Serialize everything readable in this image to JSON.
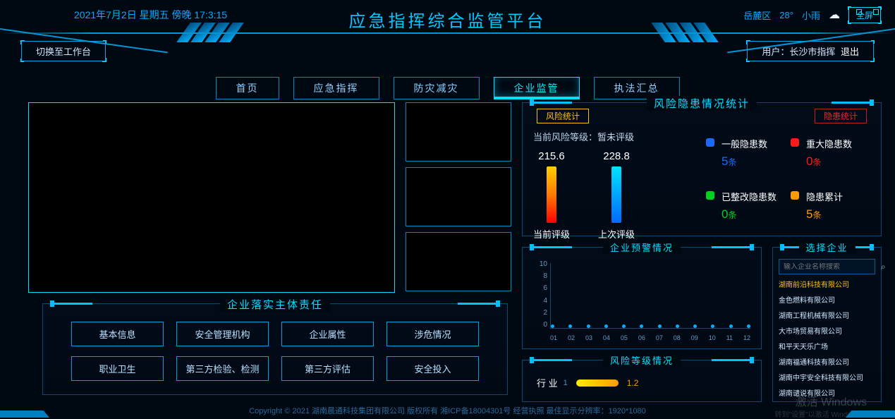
{
  "header": {
    "datetime": "2021年7月2日 星期五 傍晚 17:3:15",
    "title": "应急指挥综合监管平台",
    "weather_loc": "岳麓区",
    "weather_temp": "28°",
    "weather_cond": "小雨",
    "fullscreen": "全屏"
  },
  "subbar": {
    "switch_label": "切换至工作台",
    "user_prefix": "用户：",
    "user_name": "长沙市指挥",
    "logout": "退出"
  },
  "nav": {
    "items": [
      "首页",
      "应急指挥",
      "防灾减灾",
      "企业监管",
      "执法汇总"
    ],
    "active_index": 3
  },
  "risk_panel": {
    "title": "风险隐患情况统计",
    "left_tag": "风险统计",
    "right_tag": "隐患统计",
    "current_label": "当前风险等级：",
    "current_value": "暂未评级",
    "gauges": [
      {
        "value": "215.6",
        "label": "当前评级",
        "bar_class": "gb1"
      },
      {
        "value": "228.8",
        "label": "上次评级",
        "bar_class": "gb2"
      }
    ],
    "stats": [
      {
        "name": "一般隐患数",
        "value": "5",
        "unit": "条",
        "dot": "#1a6aff",
        "color": "#1a6aff"
      },
      {
        "name": "重大隐患数",
        "value": "0",
        "unit": "条",
        "dot": "#ff1a1a",
        "color": "#ff1a1a"
      },
      {
        "name": "已整改隐患数",
        "value": "0",
        "unit": "条",
        "dot": "#00d020",
        "color": "#00d020"
      },
      {
        "name": "隐患累计",
        "value": "5",
        "unit": "条",
        "dot": "#ff9a00",
        "color": "#ff9a00"
      }
    ]
  },
  "alert_panel": {
    "title": "企业预警情况",
    "y_ticks": [
      "10",
      "8",
      "6",
      "4",
      "2",
      "0"
    ],
    "x_ticks": [
      "01",
      "02",
      "03",
      "04",
      "05",
      "06",
      "07",
      "08",
      "09",
      "10",
      "11",
      "12"
    ]
  },
  "risklevel_panel": {
    "title": "风险等级情况",
    "row_label": "行 业",
    "tick": "1",
    "value": "1.2"
  },
  "enterprise_panel": {
    "title": "选择企业",
    "search_placeholder": "输入企业名称搜索",
    "items": [
      "湖南前沿科技有限公司",
      "金色燃料有限公司",
      "湖南工程机械有限公司",
      "大市场贸易有限公司",
      "和平天天乐广场",
      "湖南福通科技有限公司",
      "湖南中宇安全科技有限公司",
      "湖南谴说有限公司"
    ],
    "selected_index": 0
  },
  "resp_panel": {
    "title": "企业落实主体责任",
    "buttons": [
      "基本信息",
      "安全管理机构",
      "企业属性",
      "涉危情况",
      "职业卫生",
      "第三方检验、检测",
      "第三方评估",
      "安全投入"
    ]
  },
  "footer": {
    "text": "Copyright © 2021 湖南晨通科技集团有限公司 版权所有 湘ICP备18004301号 经营执照   最佳显示分辨率：1920*1080"
  },
  "watermark": {
    "line1": "激活 Windows",
    "line2": "转到\"设置\"以激活 Windows。"
  }
}
